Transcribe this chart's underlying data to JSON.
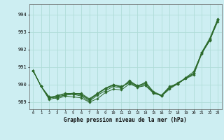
{
  "title": "Graphe pression niveau de la mer (hPa)",
  "background_color": "#cdeef2",
  "plot_bg_color": "#cdeef2",
  "grid_color": "#b0ddd8",
  "line_color": "#2d6b2d",
  "xlim": [
    -0.5,
    23.5
  ],
  "ylim": [
    988.6,
    994.6
  ],
  "yticks": [
    989,
    990,
    991,
    992,
    993,
    994
  ],
  "xticks": [
    0,
    1,
    2,
    3,
    4,
    5,
    6,
    7,
    8,
    9,
    10,
    11,
    12,
    13,
    14,
    15,
    16,
    17,
    18,
    19,
    20,
    21,
    22,
    23
  ],
  "series": [
    [
      990.8,
      989.9,
      989.3,
      989.2,
      989.35,
      989.3,
      989.25,
      989.0,
      989.2,
      989.55,
      989.75,
      989.7,
      990.05,
      989.85,
      989.95,
      989.55,
      989.35,
      989.75,
      990.05,
      990.35,
      990.55,
      991.75,
      992.55,
      993.6
    ],
    [
      990.8,
      989.9,
      989.25,
      989.3,
      989.4,
      989.45,
      989.35,
      989.05,
      989.4,
      989.65,
      989.9,
      989.8,
      990.25,
      989.9,
      990.15,
      989.6,
      989.4,
      989.85,
      990.1,
      990.38,
      990.65,
      991.85,
      992.65,
      993.75
    ],
    [
      990.8,
      989.9,
      989.2,
      989.4,
      989.5,
      989.5,
      989.5,
      989.2,
      989.5,
      989.8,
      990.0,
      989.9,
      990.1,
      989.9,
      989.95,
      989.5,
      989.4,
      989.9,
      990.05,
      990.4,
      990.75,
      991.8,
      992.5,
      993.7
    ],
    [
      990.8,
      989.9,
      989.15,
      989.28,
      989.42,
      989.48,
      989.42,
      989.12,
      989.46,
      989.76,
      989.96,
      989.86,
      990.2,
      989.95,
      990.08,
      989.56,
      989.36,
      989.82,
      990.06,
      990.36,
      990.62,
      991.84,
      992.58,
      993.72
    ],
    [
      990.8,
      989.9,
      989.3,
      989.35,
      989.46,
      989.52,
      989.45,
      989.15,
      989.5,
      989.8,
      990.0,
      989.88,
      990.15,
      989.92,
      990.05,
      989.53,
      989.38,
      989.85,
      990.03,
      990.38,
      990.65,
      991.82,
      992.56,
      993.73
    ]
  ]
}
